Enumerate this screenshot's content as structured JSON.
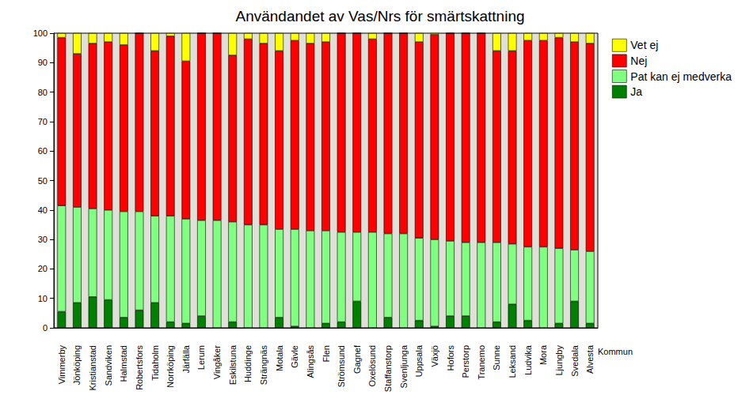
{
  "chart_data": {
    "type": "bar",
    "title": "Användandet av Vas/Nrs för smärtskattning",
    "x_label": "Kommun",
    "categories": [
      "Vimmerby",
      "Jönköping",
      "Kristianstad",
      "Sandviken",
      "Halmstad",
      "Robertsfors",
      "Tidaholm",
      "Norrköping",
      "Järfälla",
      "Lerum",
      "Vingåker",
      "Eskilstuna",
      "Huddinge",
      "Strängnäs",
      "Motala",
      "Gävle",
      "Alingsås",
      "Flen",
      "Strömsund",
      "Gagnef",
      "Oxelösund",
      "Staffanstorp",
      "Svenljunga",
      "Uppsala",
      "Växjö",
      "Hofors",
      "Perstorp",
      "Tranemo",
      "Sunne",
      "Leksand",
      "Ludvika",
      "Mora",
      "Ljungby",
      "Svedala",
      "Alvesta"
    ],
    "series": [
      {
        "name": "Ja",
        "color": "#008000",
        "values": [
          5.5,
          8.5,
          10.5,
          9.5,
          3.5,
          6,
          8.5,
          2,
          1.5,
          4,
          0,
          2,
          0,
          0,
          3.5,
          0.5,
          0,
          1.5,
          2,
          9,
          0,
          3.5,
          0,
          2.5,
          0.5,
          4,
          4,
          0,
          2,
          8,
          2.5,
          0,
          1.5,
          9,
          1.5
        ]
      },
      {
        "name": "Pat kan ej medverka",
        "color": "#80ff80",
        "values": [
          36,
          32.5,
          30,
          30.5,
          36,
          33.5,
          29.5,
          36,
          35.5,
          32.5,
          36.5,
          34,
          35,
          35,
          30,
          33,
          33,
          31.5,
          30.5,
          23.5,
          32.5,
          28.5,
          32,
          28,
          29.5,
          25.5,
          25,
          29,
          27,
          20.5,
          25,
          27.5,
          25.5,
          17.5,
          24.5
        ]
      },
      {
        "name": "Nej",
        "color": "#ff0000",
        "values": [
          57,
          52,
          56,
          57,
          56.5,
          60.5,
          56,
          61,
          53.5,
          63.5,
          63.5,
          56.5,
          63,
          61.5,
          60.5,
          64,
          63.5,
          64,
          67.5,
          67.5,
          65.5,
          68,
          68,
          66.5,
          69.5,
          70.5,
          71,
          71,
          65,
          65.5,
          70,
          70,
          71.5,
          70.5,
          70.5
        ]
      },
      {
        "name": "Vet ej",
        "color": "#ffff00",
        "values": [
          1.5,
          7,
          3.5,
          3,
          4,
          0,
          6,
          1,
          9.5,
          0,
          0,
          7.5,
          2,
          3.5,
          6,
          2.5,
          3.5,
          3,
          0,
          0,
          2,
          0,
          0,
          3,
          0.5,
          0,
          0,
          0,
          6,
          6,
          2.5,
          2.5,
          1.5,
          3,
          3.5
        ]
      }
    ],
    "ylim": [
      0,
      100
    ],
    "yticks": [
      0,
      10,
      20,
      30,
      40,
      50,
      60,
      70,
      80,
      90,
      100
    ],
    "stacked": true,
    "grid": false,
    "legend": "top-right"
  }
}
